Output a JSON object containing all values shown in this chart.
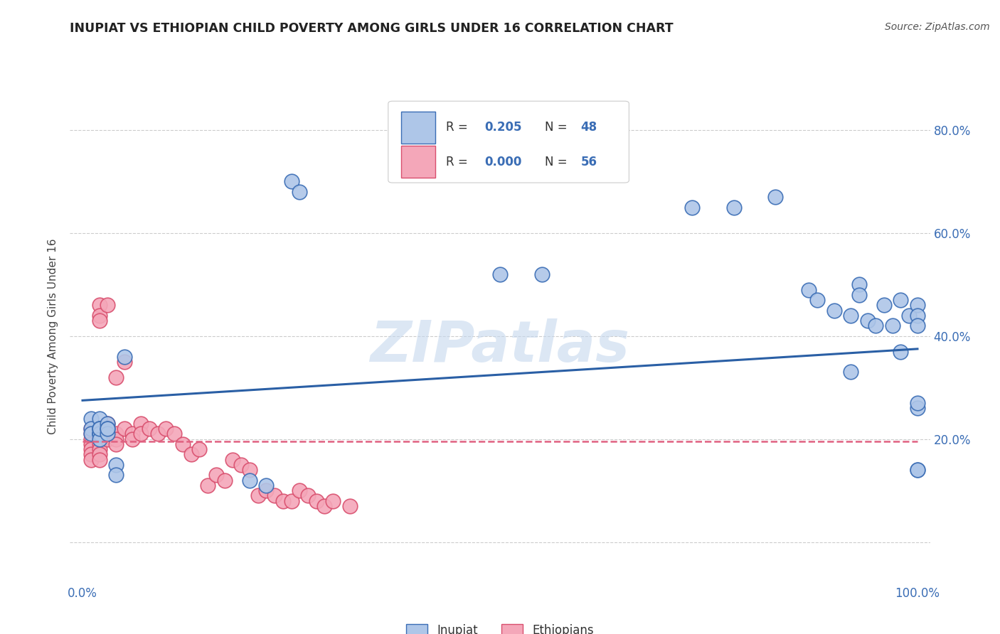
{
  "title": "INUPIAT VS ETHIOPIAN CHILD POVERTY AMONG GIRLS UNDER 16 CORRELATION CHART",
  "source": "Source: ZipAtlas.com",
  "ylabel": "Child Poverty Among Girls Under 16",
  "watermark": "ZIPatlas",
  "inupiat_R": 0.205,
  "inupiat_N": 48,
  "ethiopian_R": 0.0,
  "ethiopian_N": 56,
  "inupiat_color": "#aec6e8",
  "inupiat_edge_color": "#3a6db5",
  "ethiopian_color": "#f4a7b9",
  "ethiopian_edge_color": "#d94f6e",
  "inupiat_line_color": "#2a5fa5",
  "ethiopian_line_color": "#e06080",
  "xlim": [
    0.0,
    1.0
  ],
  "ylim": [
    -0.08,
    0.88
  ],
  "inupiat_x": [
    0.01,
    0.01,
    0.01,
    0.02,
    0.02,
    0.02,
    0.02,
    0.02,
    0.02,
    0.02,
    0.02,
    0.03,
    0.03,
    0.03,
    0.03,
    0.04,
    0.04,
    0.05,
    0.2,
    0.22,
    0.25,
    0.26,
    0.5,
    0.55,
    0.73,
    0.78,
    0.83,
    0.87,
    0.88,
    0.9,
    0.92,
    0.92,
    0.93,
    0.93,
    0.94,
    0.95,
    0.96,
    0.97,
    0.98,
    0.98,
    0.99,
    1.0,
    1.0,
    1.0,
    1.0,
    1.0,
    1.0,
    1.0
  ],
  "inupiat_y": [
    0.24,
    0.22,
    0.21,
    0.24,
    0.22,
    0.22,
    0.21,
    0.21,
    0.21,
    0.2,
    0.22,
    0.23,
    0.22,
    0.21,
    0.22,
    0.15,
    0.13,
    0.36,
    0.12,
    0.11,
    0.7,
    0.68,
    0.52,
    0.52,
    0.65,
    0.65,
    0.67,
    0.49,
    0.47,
    0.45,
    0.44,
    0.33,
    0.5,
    0.48,
    0.43,
    0.42,
    0.46,
    0.42,
    0.47,
    0.37,
    0.44,
    0.46,
    0.44,
    0.42,
    0.26,
    0.27,
    0.14,
    0.14
  ],
  "ethiopian_x": [
    0.01,
    0.01,
    0.01,
    0.01,
    0.01,
    0.01,
    0.01,
    0.02,
    0.02,
    0.02,
    0.02,
    0.02,
    0.02,
    0.02,
    0.02,
    0.02,
    0.02,
    0.03,
    0.03,
    0.03,
    0.03,
    0.03,
    0.04,
    0.04,
    0.04,
    0.04,
    0.05,
    0.05,
    0.06,
    0.06,
    0.07,
    0.07,
    0.08,
    0.09,
    0.1,
    0.11,
    0.12,
    0.13,
    0.14,
    0.15,
    0.16,
    0.17,
    0.18,
    0.19,
    0.2,
    0.21,
    0.22,
    0.23,
    0.24,
    0.25,
    0.26,
    0.27,
    0.28,
    0.29,
    0.3,
    0.32
  ],
  "ethiopian_y": [
    0.22,
    0.21,
    0.2,
    0.19,
    0.18,
    0.17,
    0.16,
    0.46,
    0.44,
    0.43,
    0.22,
    0.21,
    0.2,
    0.19,
    0.18,
    0.17,
    0.16,
    0.46,
    0.23,
    0.22,
    0.21,
    0.2,
    0.32,
    0.21,
    0.2,
    0.19,
    0.35,
    0.22,
    0.21,
    0.2,
    0.23,
    0.21,
    0.22,
    0.21,
    0.22,
    0.21,
    0.19,
    0.17,
    0.18,
    0.11,
    0.13,
    0.12,
    0.16,
    0.15,
    0.14,
    0.09,
    0.1,
    0.09,
    0.08,
    0.08,
    0.1,
    0.09,
    0.08,
    0.07,
    0.08,
    0.07
  ],
  "inupiat_trend_x": [
    0.0,
    1.0
  ],
  "inupiat_trend_y": [
    0.275,
    0.375
  ],
  "ethiopian_trend_x": [
    0.0,
    1.0
  ],
  "ethiopian_trend_y": [
    0.195,
    0.195
  ],
  "ytick_positions": [
    0.0,
    0.2,
    0.4,
    0.6,
    0.8
  ],
  "ytick_labels": [
    "",
    "20.0%",
    "40.0%",
    "60.0%",
    "80.0%"
  ],
  "xtick_positions": [
    0.0,
    0.5,
    1.0
  ],
  "xtick_labels": [
    "0.0%",
    "",
    "100.0%"
  ]
}
